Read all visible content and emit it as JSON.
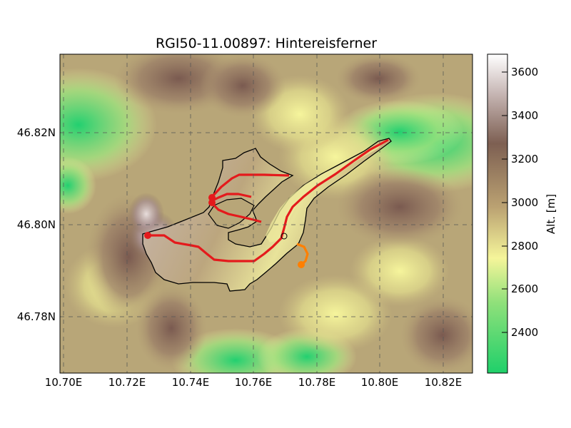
{
  "title": "RGI50-11.00897: Hintereisferner",
  "x_ticks": [
    "10.70E",
    "10.72E",
    "10.74E",
    "10.76E",
    "10.78E",
    "10.80E",
    "10.82E"
  ],
  "y_ticks": [
    "46.82N",
    "46.80N",
    "46.78N"
  ],
  "colorbar": {
    "label": "Alt. [m]",
    "ticks": [
      "3600",
      "3400",
      "3200",
      "3000",
      "2800",
      "2600",
      "2400"
    ],
    "range": [
      2220,
      3690
    ],
    "colors": [
      "#1fd06a",
      "#8fe07a",
      "#f5f59a",
      "#bba272",
      "#7d5f52",
      "#c8b8b6",
      "#ffffff"
    ]
  },
  "map": {
    "lon_range": [
      10.699,
      10.829
    ],
    "lat_range": [
      46.767,
      46.837
    ],
    "grid": true,
    "outline_color": "#000000",
    "main_flowline_color": "#e41a1c",
    "tributary_flowline_color": "#ff7f00"
  }
}
